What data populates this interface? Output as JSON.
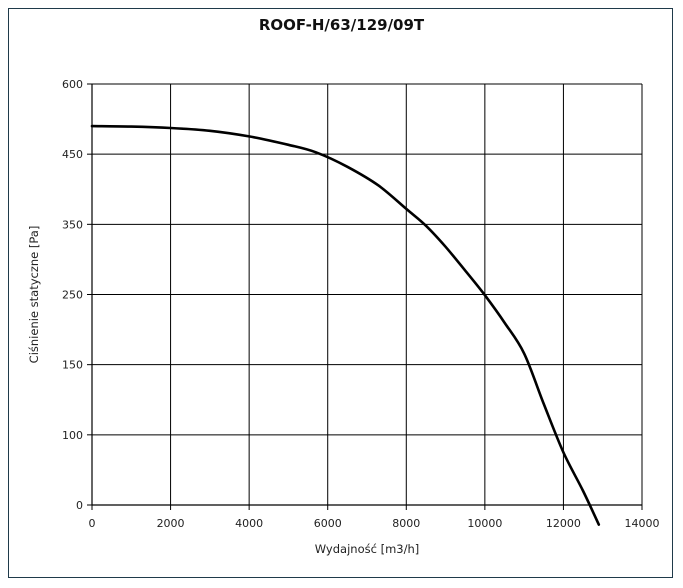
{
  "chart_data": {
    "type": "line",
    "title": "ROOF-H/63/129/09T",
    "xlabel": "Wydajność [m3/h]",
    "ylabel": "Ciśnienie statyczne [Pa]",
    "xlim": [
      0,
      14000
    ],
    "x_ticks": [
      "0",
      "2000",
      "4000",
      "6000",
      "8000",
      "10000",
      "12000",
      "14000"
    ],
    "y_tick_labels": [
      "0",
      "100",
      "150",
      "250",
      "350",
      "450",
      "600"
    ],
    "grid": true,
    "series": [
      {
        "x": [
          0,
          1000,
          2000,
          3000,
          4000,
          5000,
          5700,
          6500,
          7300,
          8000,
          8500,
          9000,
          9500,
          10000,
          10500,
          11000,
          11500,
          12000,
          12500,
          12900
        ],
        "y": [
          510,
          509,
          506,
          500,
          488,
          470,
          454,
          432,
          405,
          372,
          348,
          318,
          284,
          249,
          210,
          166,
          122,
          75,
          20,
          -28
        ]
      }
    ]
  }
}
